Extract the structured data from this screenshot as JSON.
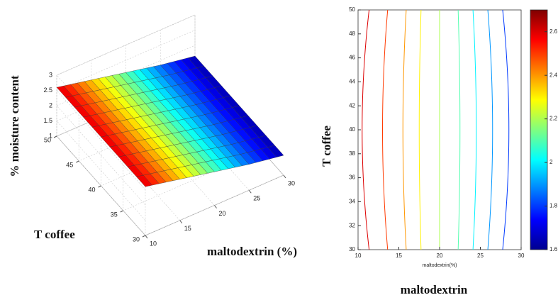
{
  "chart_data": [
    {
      "type": "surface",
      "zlabel": "% moisture content",
      "ylabel": "T coffee",
      "xlabel": "maltodextrin (%)",
      "x": [
        10,
        15,
        20,
        25,
        30
      ],
      "values": [
        2.6,
        2.35,
        2.1,
        1.85,
        1.65
      ],
      "xlim": [
        10,
        30
      ],
      "xticks": [
        10,
        15,
        20,
        25,
        30
      ],
      "ylim": [
        30,
        50
      ],
      "yticks": [
        30,
        35,
        40,
        45,
        50
      ],
      "zlim": [
        1,
        3
      ],
      "zticks": [
        1,
        1.5,
        2,
        2.5,
        3
      ],
      "clim": [
        1.6,
        2.7
      ],
      "grid": true
    },
    {
      "type": "contour",
      "xlabel": "maltodextrin",
      "axis_xlabel": "maltodextrin(%)",
      "ylabel": "T coffee",
      "xlim": [
        10,
        30
      ],
      "xticks": [
        10,
        15,
        20,
        25,
        30
      ],
      "ylim": [
        30,
        50
      ],
      "yticks": [
        30,
        32,
        34,
        36,
        38,
        40,
        42,
        44,
        46,
        48,
        50
      ],
      "clim": [
        1.6,
        2.7
      ],
      "cticks": [
        1.6,
        1.8,
        2,
        2.2,
        2.4,
        2.6
      ],
      "contours": [
        {
          "level": 2.6,
          "x": 10.5
        },
        {
          "level": 2.5,
          "x": 13
        },
        {
          "level": 2.4,
          "x": 15.5
        },
        {
          "level": 2.3,
          "x": 17.5
        },
        {
          "level": 2.2,
          "x": 20
        },
        {
          "level": 2.1,
          "x": 22.5
        },
        {
          "level": 2.0,
          "x": 24.5
        },
        {
          "level": 1.9,
          "x": 26.5
        },
        {
          "level": 1.8,
          "x": 28.5
        }
      ]
    }
  ]
}
